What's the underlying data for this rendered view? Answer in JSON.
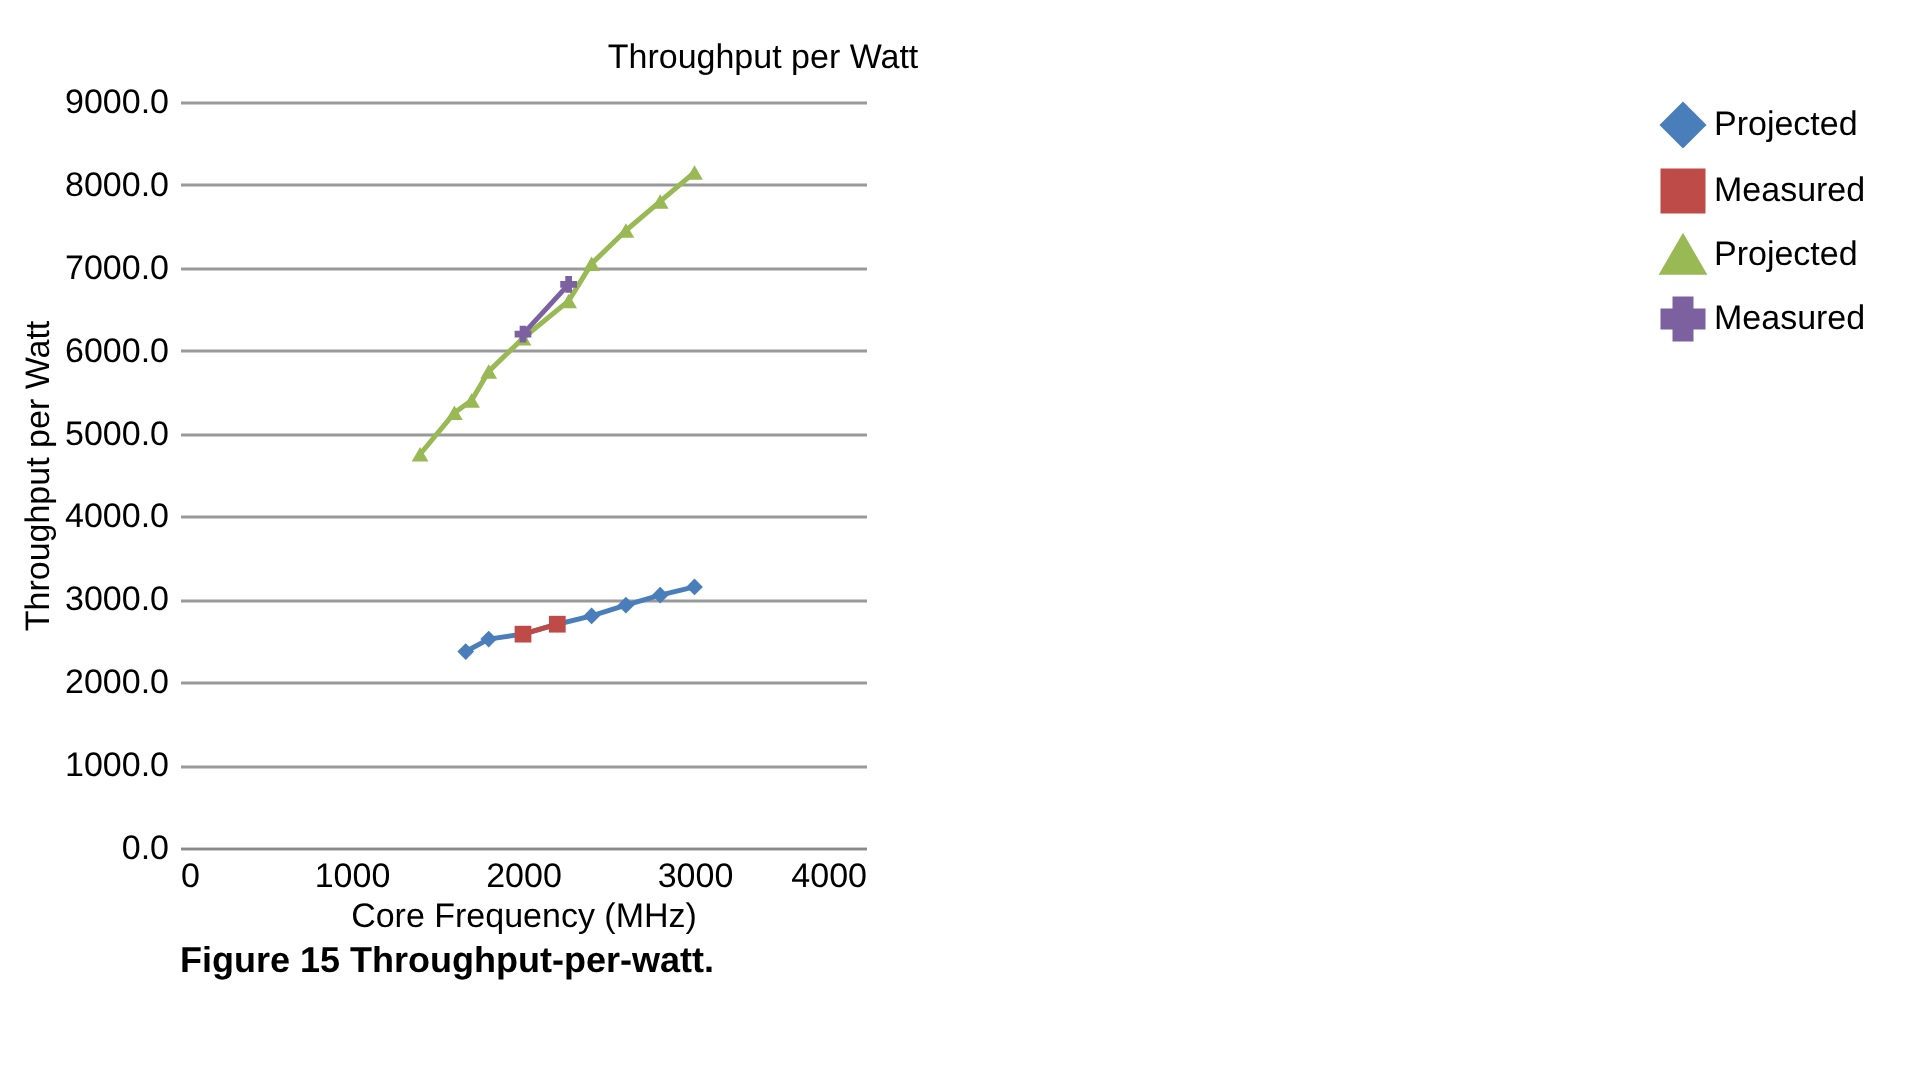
{
  "chart_data": {
    "type": "line",
    "title": "Throughput  per Watt",
    "xlabel": "Core Frequency (MHz)",
    "ylabel": "Throughput  per Watt",
    "annotations": [
      "Figure 15 Throughput-per-watt."
    ],
    "series": [
      {
        "name": "Projected",
        "color": "#4a7ebb",
        "marker": "diamond",
        "x": [
          1666,
          1800,
          2000,
          2200,
          2400,
          2600,
          2800,
          3000
        ],
        "values": [
          2370,
          2520,
          2580,
          2700,
          2800,
          2930,
          3050,
          3150
        ]
      },
      {
        "name": "Measured",
        "color": "#be4b48",
        "marker": "square",
        "x": [
          2000,
          2200
        ],
        "values": [
          2580,
          2700
        ]
      },
      {
        "name": "Projected ",
        "color": "#98b954",
        "marker": "triangle",
        "x": [
          1400,
          1600,
          1700,
          1800,
          2000,
          2266,
          2400,
          2600,
          2800,
          3000
        ],
        "values": [
          4750,
          5250,
          5400,
          5750,
          6150,
          6600,
          7050,
          7450,
          7800,
          8150
        ]
      },
      {
        "name": "Measured ",
        "color": "#7d60a0",
        "marker": "cross",
        "x": [
          2000,
          2266
        ],
        "values": [
          6200,
          6800
        ]
      }
    ],
    "xlim": [
      0,
      4000
    ],
    "xticks": [
      0,
      1000,
      2000,
      3000,
      4000
    ],
    "ylim": [
      0,
      9000
    ],
    "yticks": [
      {
        "value": 0,
        "label": "0.0"
      },
      {
        "value": 1000,
        "label": "1000.0"
      },
      {
        "value": 2000,
        "label": "2000.0"
      },
      {
        "value": 3000,
        "label": "3000.0"
      },
      {
        "value": 4000,
        "label": "4000.0"
      },
      {
        "value": 5000,
        "label": "5000.0"
      },
      {
        "value": 6000,
        "label": "6000.0"
      },
      {
        "value": 7000,
        "label": "7000.0"
      },
      {
        "value": 8000,
        "label": "8000.0"
      },
      {
        "value": 9000,
        "label": "9000.0"
      }
    ],
    "grid": "y",
    "legend": "right"
  }
}
